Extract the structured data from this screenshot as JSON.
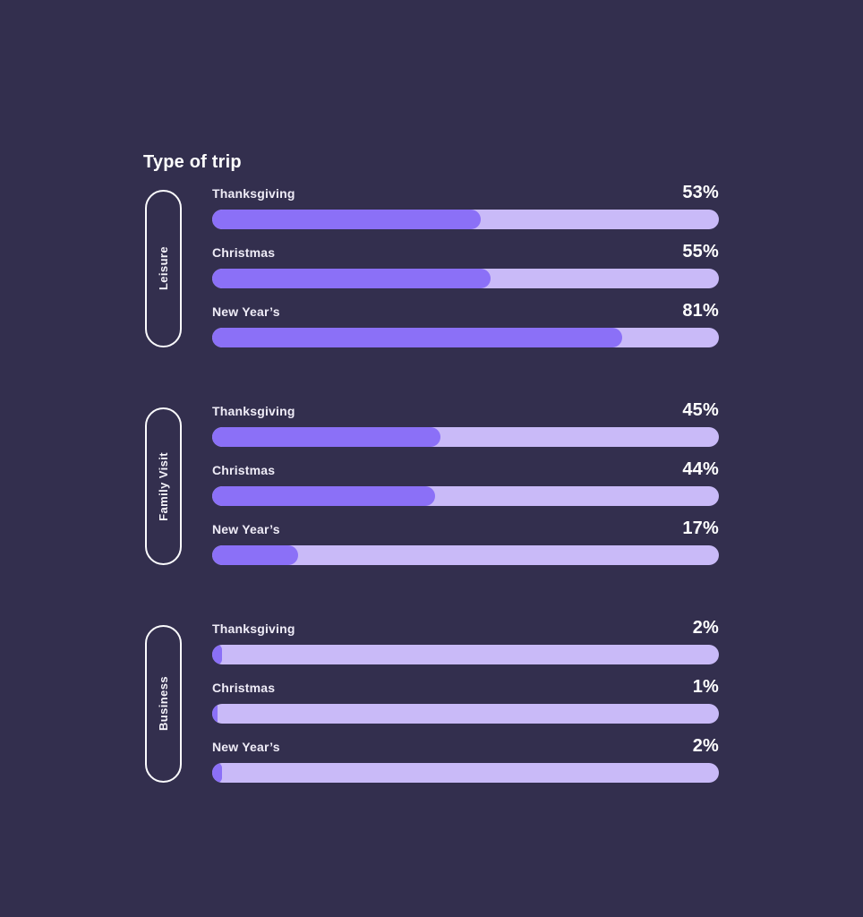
{
  "title": "Type of trip",
  "colors": {
    "background": "#332F4E",
    "bar_fill": "#8B70F7",
    "bar_track": "#C9BAF8",
    "text": "#FFFFFF"
  },
  "chart_data": {
    "type": "bar",
    "orientation": "horizontal",
    "title": "Type of trip",
    "unit": "%",
    "xlim": [
      0,
      100
    ],
    "grid": false,
    "legend": false,
    "categories": [
      "Thanksgiving",
      "Christmas",
      "New Year’s"
    ],
    "groups": [
      {
        "label": "Leisure",
        "categories": [
          "Thanksgiving",
          "Christmas",
          "New Year’s"
        ],
        "values": [
          53,
          55,
          81
        ],
        "value_labels": [
          "53%",
          "55%",
          "81%"
        ]
      },
      {
        "label": "Family Visit",
        "categories": [
          "Thanksgiving",
          "Christmas",
          "New Year’s"
        ],
        "values": [
          45,
          44,
          17
        ],
        "value_labels": [
          "45%",
          "44%",
          "17%"
        ]
      },
      {
        "label": "Business",
        "categories": [
          "Thanksgiving",
          "Christmas",
          "New Year’s"
        ],
        "values": [
          2,
          1,
          2
        ],
        "value_labels": [
          "2%",
          "1%",
          "2%"
        ]
      }
    ]
  }
}
